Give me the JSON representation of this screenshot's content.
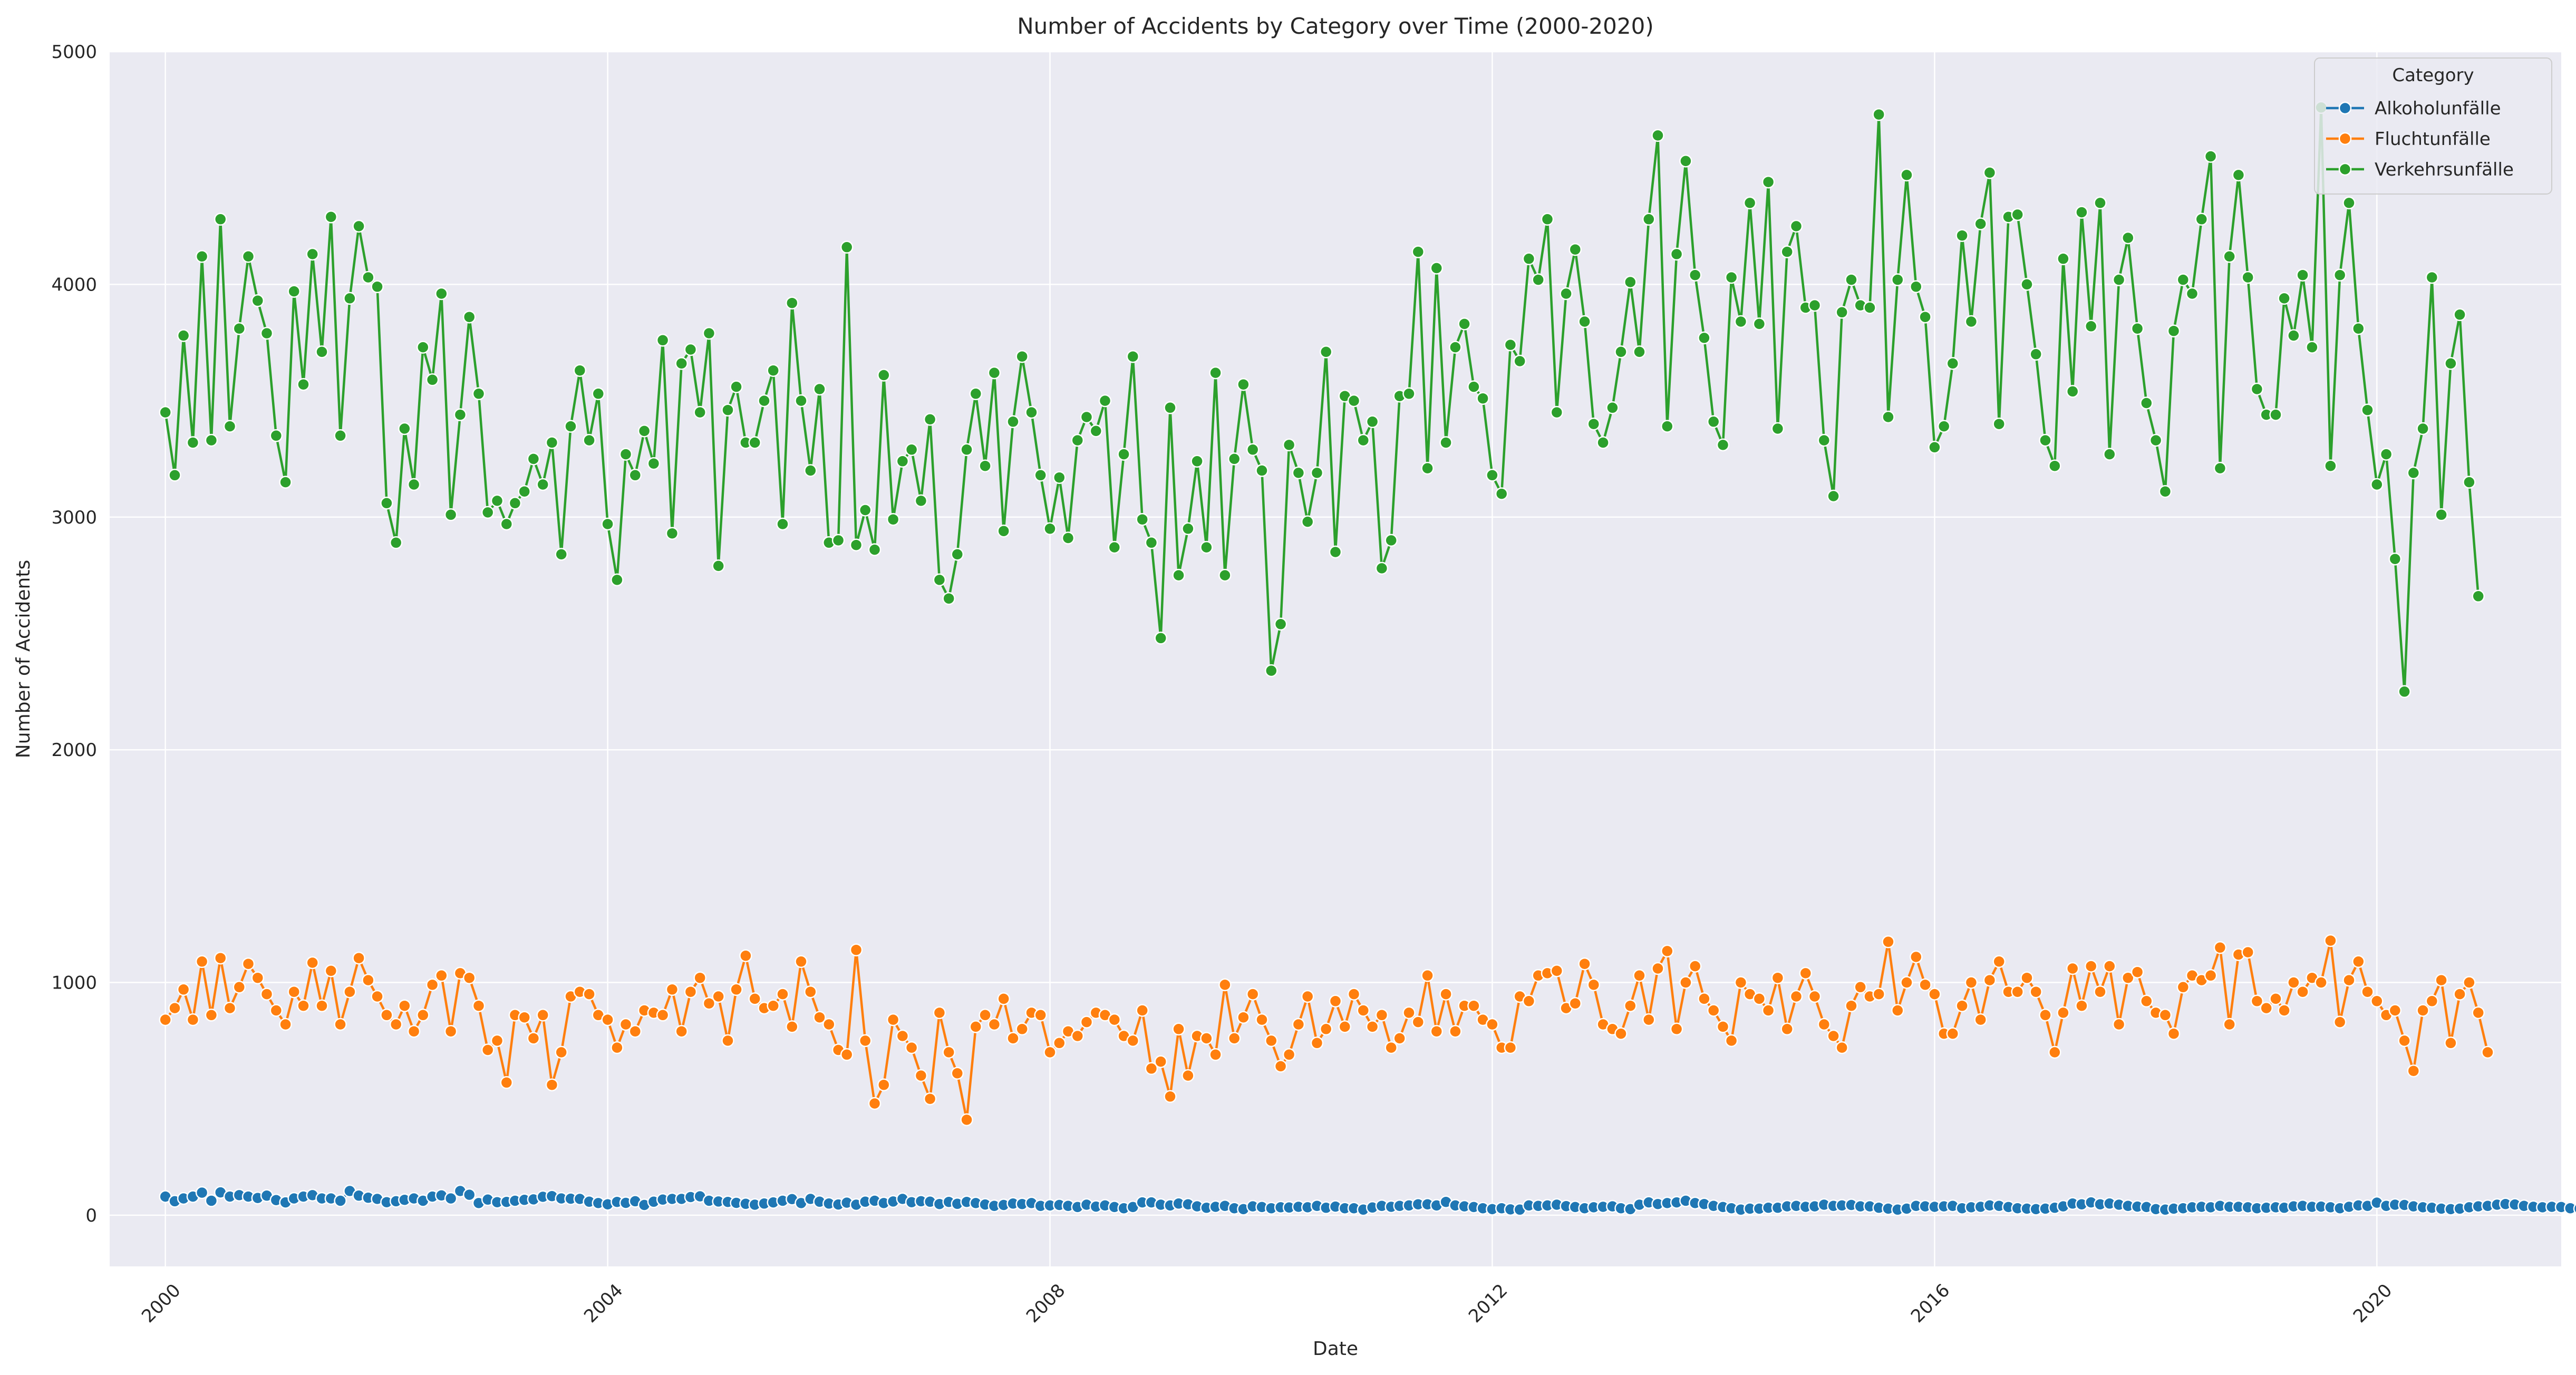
{
  "chart_data": {
    "type": "line",
    "title": "Number of Accidents by Category over Time (2000-2020)",
    "xlabel": "Date",
    "ylabel": "Number of Accidents",
    "xlim": [
      "1999-07-01",
      "2021-09-01"
    ],
    "ylim": [
      -220,
      5000
    ],
    "x_ticks": [
      "2000",
      "2004",
      "2008",
      "2012",
      "2016",
      "2020"
    ],
    "y_ticks": [
      0,
      1000,
      2000,
      3000,
      4000,
      5000
    ],
    "grid": true,
    "legend": {
      "title": "Category",
      "position": "top-right"
    },
    "x_start": "2000-01",
    "x_step": "1 month",
    "series": [
      {
        "name": "Alkoholunfälle",
        "color": "#1f77b4",
        "values": [
          80,
          60,
          72,
          80,
          97,
          62,
          98,
          80,
          86,
          80,
          74,
          84,
          65,
          55,
          72,
          80,
          86,
          72,
          72,
          62,
          104,
          84,
          75,
          70,
          56,
          60,
          66,
          72,
          62,
          80,
          85,
          72,
          104,
          88,
          52,
          67,
          56,
          57,
          62,
          66,
          68,
          79,
          82,
          72,
          71,
          70,
          58,
          52,
          47,
          57,
          53,
          60,
          44,
          58,
          67,
          70,
          70,
          78,
          81,
          62,
          59,
          57,
          53,
          49,
          45,
          50,
          55,
          62,
          69,
          52,
          70,
          58,
          50,
          46,
          54,
          45,
          58,
          62,
          52,
          59,
          70,
          56,
          60,
          58,
          48,
          57,
          49,
          57,
          52,
          46,
          40,
          44,
          50,
          48,
          52,
          40,
          42,
          44,
          40,
          35,
          45,
          37,
          42,
          35,
          30,
          35,
          55,
          55,
          45,
          42,
          50,
          47,
          38,
          32,
          36,
          40,
          30,
          26,
          38,
          35,
          30,
          34,
          33,
          36,
          34,
          40,
          32,
          37,
          30,
          30,
          24,
          33,
          40,
          36,
          40,
          42,
          47,
          47,
          42,
          57,
          42,
          38,
          35,
          30,
          26,
          30,
          25,
          24,
          42,
          40,
          42,
          45,
          39,
          35,
          30,
          34,
          36,
          38,
          30,
          26,
          45,
          55,
          48,
          52,
          55,
          62,
          52,
          48,
          40,
          35,
          30,
          24,
          28,
          28,
          32,
          32,
          38,
          40,
          36,
          38,
          45,
          40,
          42,
          44,
          38,
          38,
          32,
          28,
          24,
          28,
          40,
          38,
          36,
          38,
          40,
          30,
          34,
          36,
          42,
          40,
          35,
          30,
          28,
          26,
          28,
          32,
          38,
          50,
          47,
          55,
          47,
          50,
          45,
          40,
          37,
          35,
          26,
          24,
          28,
          30,
          34,
          36,
          34,
          40,
          36,
          36,
          34,
          30,
          32,
          34,
          32,
          38,
          40,
          36,
          37,
          34,
          30,
          36,
          42,
          40,
          54,
          40,
          45,
          44,
          38,
          34,
          32,
          28,
          26,
          28,
          34,
          38,
          40,
          45,
          48,
          46,
          40,
          36,
          34,
          36,
          35,
          30,
          28,
          26,
          30,
          34,
          38,
          42,
          40,
          36,
          38,
          44,
          45,
          40,
          50,
          48,
          52,
          54,
          46,
          38,
          32,
          30,
          28,
          30,
          26,
          22,
          30,
          34,
          36,
          42,
          48,
          55,
          52,
          48,
          42,
          36,
          30,
          24,
          10
        ]
      },
      {
        "name": "Fluchtunfälle",
        "color": "#ff7f0e",
        "values": [
          840,
          890,
          970,
          840,
          1090,
          860,
          1105,
          890,
          980,
          1080,
          1020,
          950,
          880,
          820,
          960,
          900,
          1085,
          900,
          1050,
          820,
          960,
          1105,
          1010,
          940,
          860,
          820,
          900,
          790,
          860,
          990,
          1030,
          790,
          1040,
          1020,
          900,
          710,
          750,
          570,
          860,
          850,
          760,
          860,
          560,
          700,
          940,
          960,
          950,
          860,
          840,
          720,
          820,
          790,
          880,
          870,
          860,
          970,
          790,
          960,
          1020,
          910,
          940,
          750,
          970,
          1115,
          930,
          890,
          900,
          950,
          810,
          1090,
          960,
          850,
          820,
          710,
          690,
          1140,
          750,
          480,
          560,
          840,
          770,
          720,
          600,
          500,
          870,
          700,
          610,
          410,
          810,
          860,
          820,
          930,
          760,
          800,
          870,
          860,
          700,
          740,
          790,
          770,
          830,
          870,
          860,
          840,
          770,
          750,
          880,
          630,
          660,
          510,
          800,
          600,
          770,
          760,
          690,
          990,
          760,
          850,
          950,
          840,
          750,
          640,
          690,
          820,
          940,
          740,
          800,
          920,
          810,
          950,
          880,
          810,
          860,
          720,
          760,
          870,
          830,
          1030,
          790,
          950,
          790,
          900,
          900,
          840,
          820,
          720,
          720,
          940,
          920,
          1030,
          1040,
          1050,
          890,
          910,
          1080,
          990,
          820,
          800,
          780,
          900,
          1030,
          840,
          1060,
          1135,
          800,
          1000,
          1070,
          930,
          880,
          810,
          750,
          1000,
          950,
          930,
          880,
          1020,
          800,
          940,
          1040,
          940,
          820,
          770,
          720,
          900,
          980,
          940,
          950,
          1175,
          880,
          1000,
          1110,
          990,
          950,
          780,
          780,
          900,
          1000,
          840,
          1010,
          1090,
          960,
          960,
          1020,
          960,
          860,
          700,
          870,
          1060,
          900,
          1070,
          960,
          1070,
          820,
          1020,
          1045,
          920,
          870,
          860,
          780,
          980,
          1030,
          1010,
          1030,
          1150,
          820,
          1120,
          1130,
          920,
          890,
          930,
          880,
          1000,
          960,
          1020,
          1000,
          1180,
          830,
          1010,
          1090,
          960,
          920,
          860,
          880,
          750,
          620,
          880,
          920,
          1010,
          740,
          950,
          1000,
          870,
          700
        ]
      },
      {
        "name": "Verkehrsunfälle",
        "color": "#2ca02c",
        "values": [
          3450,
          3180,
          3780,
          3320,
          4120,
          3330,
          4280,
          3390,
          3810,
          4120,
          3930,
          3790,
          3350,
          3150,
          3970,
          3570,
          4130,
          3710,
          4290,
          3350,
          3940,
          4250,
          4030,
          3990,
          3060,
          2890,
          3380,
          3140,
          3730,
          3590,
          3960,
          3010,
          3440,
          3860,
          3530,
          3020,
          3070,
          2970,
          3060,
          3110,
          3250,
          3140,
          3320,
          2840,
          3390,
          3630,
          3330,
          3530,
          2970,
          2730,
          3270,
          3180,
          3370,
          3230,
          3760,
          2930,
          3660,
          3720,
          3450,
          3790,
          2790,
          3460,
          3560,
          3320,
          3320,
          3500,
          3630,
          2970,
          3920,
          3500,
          3200,
          3550,
          2890,
          2900,
          4160,
          2880,
          3030,
          2860,
          3610,
          2990,
          3240,
          3290,
          3070,
          3420,
          2730,
          2650,
          2840,
          3290,
          3530,
          3220,
          3620,
          2940,
          3410,
          3690,
          3450,
          3180,
          2950,
          3170,
          2910,
          3330,
          3430,
          3370,
          3500,
          2870,
          3270,
          3690,
          2990,
          2890,
          2480,
          3470,
          2750,
          2950,
          3240,
          2870,
          3620,
          2750,
          3250,
          3570,
          3290,
          3200,
          2340,
          2540,
          3310,
          3190,
          2980,
          3190,
          3710,
          2850,
          3520,
          3500,
          3330,
          3410,
          2780,
          2900,
          3520,
          3530,
          4140,
          3210,
          4070,
          3320,
          3730,
          3830,
          3560,
          3510,
          3180,
          3100,
          3740,
          3670,
          4110,
          4020,
          4280,
          3450,
          3960,
          4150,
          3840,
          3400,
          3320,
          3470,
          3710,
          4010,
          3710,
          4280,
          4640,
          3390,
          4130,
          4530,
          4040,
          3770,
          3410,
          3310,
          4030,
          3840,
          4350,
          3830,
          4440,
          3380,
          4140,
          4250,
          3900,
          3910,
          3330,
          3090,
          3880,
          4020,
          3910,
          3900,
          4730,
          3430,
          4020,
          4470,
          3990,
          3860,
          3300,
          3390,
          3660,
          4210,
          3840,
          4260,
          4480,
          3400,
          4290,
          4300,
          4000,
          3700,
          3330,
          3220,
          4110,
          3540,
          4310,
          3820,
          4350,
          3270,
          4020,
          4200,
          3810,
          3490,
          3330,
          3110,
          3800,
          4020,
          3960,
          4280,
          4550,
          3210,
          4120,
          4470,
          4030,
          3550,
          3440,
          3440,
          3940,
          3780,
          4040,
          3730,
          4760,
          3220,
          4040,
          4350,
          3810,
          3460,
          3140,
          3270,
          2820,
          2250,
          3190,
          3380,
          4030,
          3010,
          3660,
          3870,
          3150,
          2660
        ]
      }
    ]
  }
}
